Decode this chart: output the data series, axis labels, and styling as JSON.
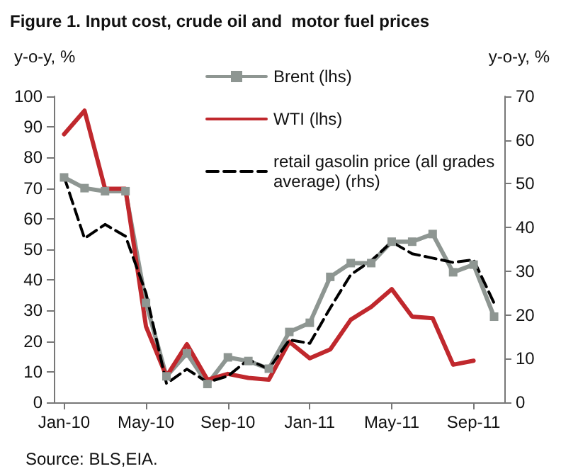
{
  "chart_data": {
    "type": "line",
    "title": "Figure 1. Input cost, crude oil and  motor fuel prices",
    "ylabel": "y-o-y, %",
    "y2label": "y-o-y, %",
    "categories": [
      "Jan-10",
      null,
      null,
      null,
      "May-10",
      null,
      null,
      null,
      "Sep-10",
      null,
      null,
      null,
      "Jan-11",
      null,
      null,
      null,
      "May-11",
      null,
      null,
      null,
      "Sep-11",
      null
    ],
    "series": [
      {
        "name": "Brent (lhs)",
        "color": "#8e9692",
        "marker": "square",
        "line_style": "solid",
        "values": [
          73.5,
          70,
          69,
          69,
          32.5,
          8.5,
          16,
          6,
          14.7,
          13.5,
          11,
          23,
          26,
          41,
          45.5,
          45.5,
          52.5,
          52.5,
          55,
          42.5,
          45,
          28
        ]
      },
      {
        "name": "WTI (lhs)",
        "color": "#c0282d",
        "marker": "none",
        "line_style": "solid",
        "values": [
          87.6,
          95.3,
          69.8,
          69.8,
          24.8,
          8.5,
          19,
          7.4,
          9.3,
          8,
          7.4,
          19.8,
          14.4,
          17.3,
          27,
          31.2,
          37,
          28,
          27.5,
          12.3,
          13.6,
          null
        ]
      },
      {
        "name": "retail gasolin price (all grades average) (rhs)",
        "color": "#000000",
        "marker": "none",
        "line_style": "dashed",
        "axis": "y2",
        "values": [
          51.6,
          37.5,
          40.7,
          38,
          25,
          4.3,
          7.6,
          4.6,
          6,
          9.8,
          7.6,
          14.3,
          13.5,
          21.6,
          29.2,
          32.4,
          36.7,
          34,
          33,
          32,
          32.6,
          22.7
        ]
      }
    ],
    "ylim": [
      0,
      100
    ],
    "yticks": [
      0,
      10,
      20,
      30,
      40,
      50,
      60,
      70,
      80,
      90,
      100
    ],
    "y2lim": [
      0,
      70
    ],
    "y2ticks": [
      0,
      10,
      20,
      30,
      40,
      50,
      60,
      70
    ],
    "grid": false,
    "legend": "top right",
    "annotations": [
      "Source: BLS,EIA."
    ]
  }
}
